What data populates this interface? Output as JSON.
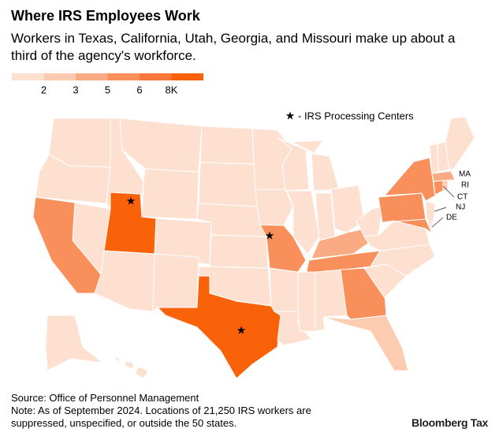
{
  "header": {
    "title": "Where IRS Employees Work",
    "subtitle": "Workers in Texas, California, Utah, Georgia, and Missouri make up about a third of the agency's workforce."
  },
  "legend": {
    "colors": [
      "#fde0d0",
      "#fccbb0",
      "#fbab83",
      "#f98f5a",
      "#f7773a",
      "#fa6209"
    ],
    "ticks": [
      2,
      3,
      5,
      6,
      {
        "value": 8,
        "label": "8K"
      }
    ]
  },
  "key": "- IRS Processing Centers",
  "map_labels": [
    "MA",
    "RI",
    "CT",
    "NJ",
    "DE"
  ],
  "footer": {
    "source": "Source: Office of Personnel Management",
    "note": "Note: As of September 2024. Locations of 21,250 IRS workers are suppressed, unspecified, or outside the 50 states.",
    "logo": "Bloomberg Tax"
  }
}
